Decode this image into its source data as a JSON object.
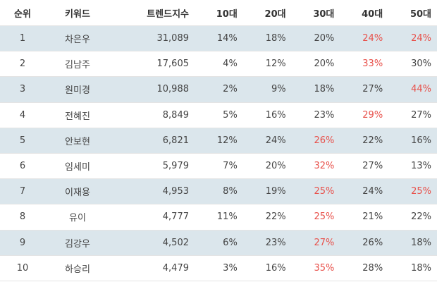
{
  "headers": {
    "rank": "순위",
    "keyword": "키워드",
    "trend": "트렌드지수",
    "age10": "10대",
    "age20": "20대",
    "age30": "30대",
    "age40": "40대",
    "age50": "50대"
  },
  "highlight_color": "#e8504a",
  "stripe_color": "#dbe6ec",
  "rows": [
    {
      "rank": "1",
      "keyword": "차은우",
      "trend": "31,089",
      "a10": "14%",
      "a20": "18%",
      "a30": "20%",
      "a40": "24%",
      "a50": "24%",
      "hl": [
        "a40",
        "a50"
      ]
    },
    {
      "rank": "2",
      "keyword": "김남주",
      "trend": "17,605",
      "a10": "4%",
      "a20": "12%",
      "a30": "20%",
      "a40": "33%",
      "a50": "30%",
      "hl": [
        "a40"
      ]
    },
    {
      "rank": "3",
      "keyword": "원미경",
      "trend": "10,988",
      "a10": "2%",
      "a20": "9%",
      "a30": "18%",
      "a40": "27%",
      "a50": "44%",
      "hl": [
        "a50"
      ]
    },
    {
      "rank": "4",
      "keyword": "전혜진",
      "trend": "8,849",
      "a10": "5%",
      "a20": "16%",
      "a30": "23%",
      "a40": "29%",
      "a50": "27%",
      "hl": [
        "a40"
      ]
    },
    {
      "rank": "5",
      "keyword": "안보현",
      "trend": "6,821",
      "a10": "12%",
      "a20": "24%",
      "a30": "26%",
      "a40": "22%",
      "a50": "16%",
      "hl": [
        "a30"
      ]
    },
    {
      "rank": "6",
      "keyword": "임세미",
      "trend": "5,979",
      "a10": "7%",
      "a20": "20%",
      "a30": "32%",
      "a40": "27%",
      "a50": "13%",
      "hl": [
        "a30"
      ]
    },
    {
      "rank": "7",
      "keyword": "이재용",
      "trend": "4,953",
      "a10": "8%",
      "a20": "19%",
      "a30": "25%",
      "a40": "24%",
      "a50": "25%",
      "hl": [
        "a30",
        "a50"
      ]
    },
    {
      "rank": "8",
      "keyword": "유이",
      "trend": "4,777",
      "a10": "11%",
      "a20": "22%",
      "a30": "25%",
      "a40": "21%",
      "a50": "22%",
      "hl": [
        "a30"
      ]
    },
    {
      "rank": "9",
      "keyword": "김강우",
      "trend": "4,502",
      "a10": "6%",
      "a20": "23%",
      "a30": "27%",
      "a40": "26%",
      "a50": "18%",
      "hl": [
        "a30"
      ]
    },
    {
      "rank": "10",
      "keyword": "하승리",
      "trend": "4,479",
      "a10": "3%",
      "a20": "16%",
      "a30": "35%",
      "a40": "28%",
      "a50": "18%",
      "hl": [
        "a30"
      ]
    }
  ]
}
